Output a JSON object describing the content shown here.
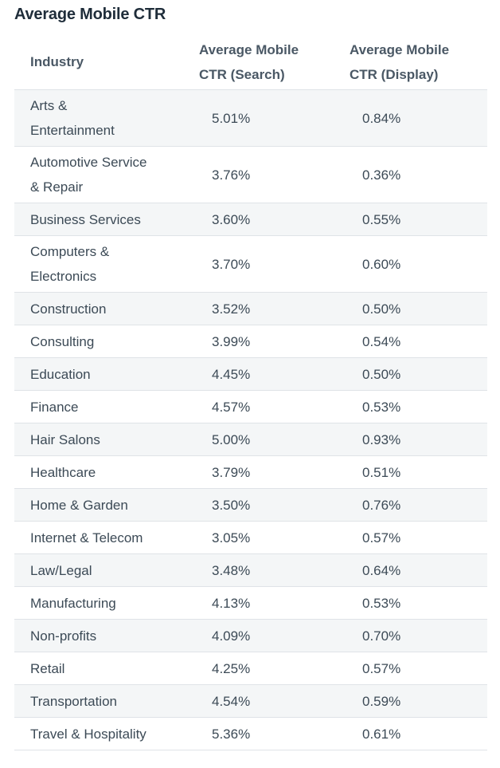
{
  "title": "Average Mobile CTR",
  "headers": {
    "industry": "Industry",
    "search_line1": "Average Mobile",
    "search_line2": "CTR (Search)",
    "display_line1": "Average Mobile",
    "display_line2": "CTR (Display)"
  },
  "rows": [
    {
      "industry_l1": "Arts &",
      "industry_l2": "Entertainment",
      "search": "5.01%",
      "display": "0.84%"
    },
    {
      "industry_l1": "Automotive Service",
      "industry_l2": "& Repair",
      "search": "3.76%",
      "display": "0.36%"
    },
    {
      "industry_l1": "Business Services",
      "industry_l2": "",
      "search": "3.60%",
      "display": "0.55%"
    },
    {
      "industry_l1": "Computers &",
      "industry_l2": "Electronics",
      "search": "3.70%",
      "display": "0.60%"
    },
    {
      "industry_l1": "Construction",
      "industry_l2": "",
      "search": "3.52%",
      "display": "0.50%"
    },
    {
      "industry_l1": "Consulting",
      "industry_l2": "",
      "search": "3.99%",
      "display": "0.54%"
    },
    {
      "industry_l1": "Education",
      "industry_l2": "",
      "search": "4.45%",
      "display": "0.50%"
    },
    {
      "industry_l1": "Finance",
      "industry_l2": "",
      "search": "4.57%",
      "display": "0.53%"
    },
    {
      "industry_l1": "Hair Salons",
      "industry_l2": "",
      "search": "5.00%",
      "display": "0.93%"
    },
    {
      "industry_l1": "Healthcare",
      "industry_l2": "",
      "search": "3.79%",
      "display": "0.51%"
    },
    {
      "industry_l1": "Home & Garden",
      "industry_l2": "",
      "search": "3.50%",
      "display": "0.76%"
    },
    {
      "industry_l1": "Internet & Telecom",
      "industry_l2": "",
      "search": "3.05%",
      "display": "0.57%"
    },
    {
      "industry_l1": "Law/Legal",
      "industry_l2": "",
      "search": "3.48%",
      "display": "0.64%"
    },
    {
      "industry_l1": "Manufacturing",
      "industry_l2": "",
      "search": "4.13%",
      "display": "0.53%"
    },
    {
      "industry_l1": "Non-profits",
      "industry_l2": "",
      "search": "4.09%",
      "display": "0.70%"
    },
    {
      "industry_l1": "Retail",
      "industry_l2": "",
      "search": "4.25%",
      "display": "0.57%"
    },
    {
      "industry_l1": "Transportation",
      "industry_l2": "",
      "search": "4.54%",
      "display": "0.59%"
    },
    {
      "industry_l1": "Travel & Hospitality",
      "industry_l2": "",
      "search": "5.36%",
      "display": "0.61%"
    }
  ]
}
